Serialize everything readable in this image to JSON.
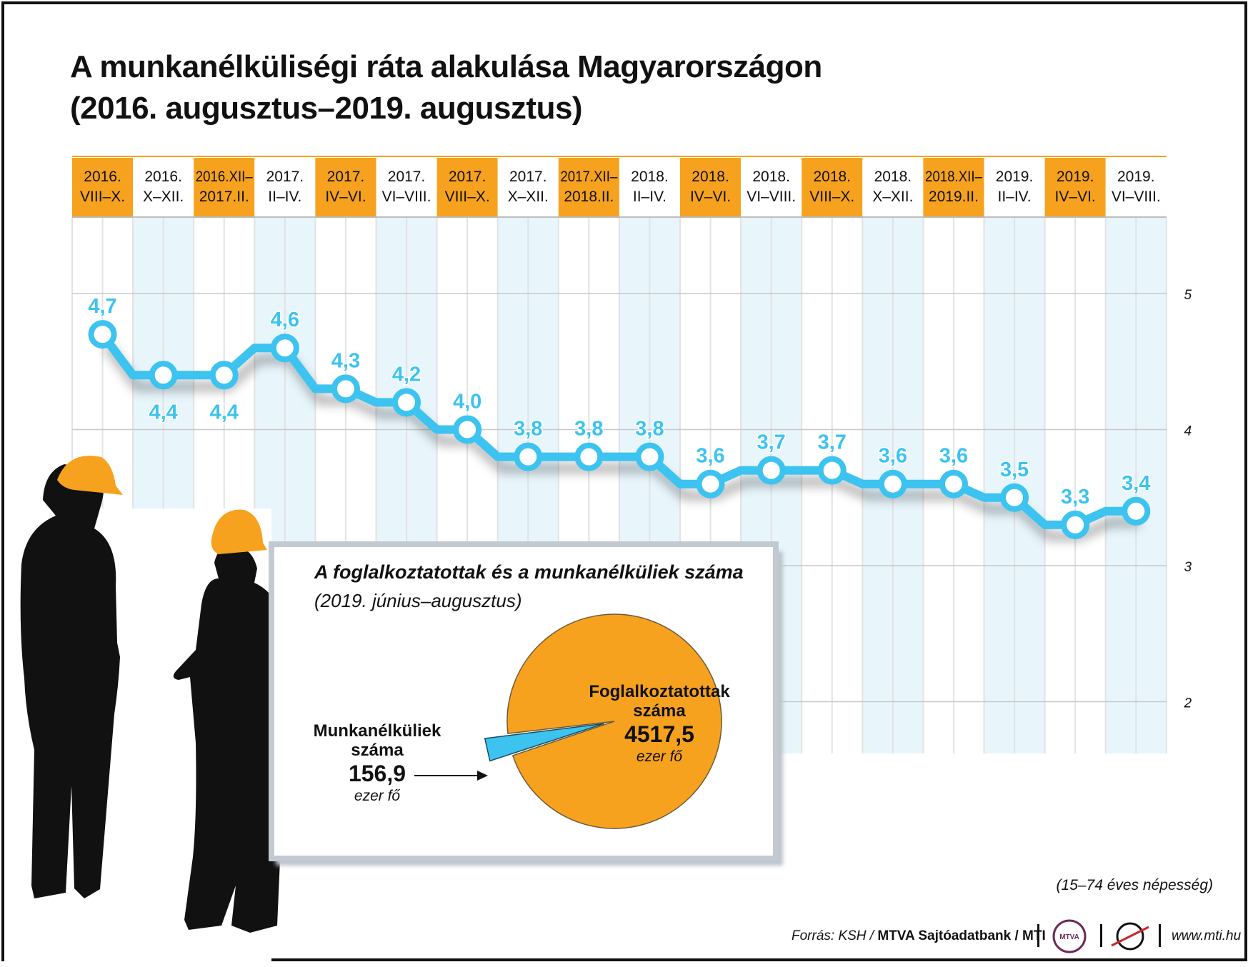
{
  "title_line1": "A munkanélküliségi ráta alakulása Magyarországon",
  "title_line2": "(2016. augusztus–2019. augusztus)",
  "colors": {
    "orange": "#f6a21e",
    "line": "#3cc3f0",
    "stripe": "#e8f6fc",
    "grid": "#c8c8c8"
  },
  "chart_data": [
    {
      "type": "line",
      "categories": [
        [
          "2016.",
          "VIII–X."
        ],
        [
          "2016.",
          "X–XII."
        ],
        [
          "2016.XII–",
          "2017.II."
        ],
        [
          "2017.",
          "II–IV."
        ],
        [
          "2017.",
          "IV–VI."
        ],
        [
          "2017.",
          "VI–VIII."
        ],
        [
          "2017.",
          "VIII–X."
        ],
        [
          "2017.",
          "X–XII."
        ],
        [
          "2017.XII–",
          "2018.II."
        ],
        [
          "2018.",
          "II–IV."
        ],
        [
          "2018.",
          "IV–VI."
        ],
        [
          "2018.",
          "VI–VIII."
        ],
        [
          "2018.",
          "VIII–X."
        ],
        [
          "2018.",
          "X–XII."
        ],
        [
          "2018.XII–",
          "2019.II."
        ],
        [
          "2019.",
          "II–IV."
        ],
        [
          "2019.",
          "IV–VI."
        ],
        [
          "2019.",
          "VI–VIII."
        ]
      ],
      "values": [
        4.7,
        4.4,
        4.4,
        4.6,
        4.3,
        4.2,
        4.0,
        3.8,
        3.8,
        3.8,
        3.6,
        3.7,
        3.7,
        3.6,
        3.6,
        3.5,
        3.3,
        3.4
      ],
      "value_labels": [
        "4,7",
        "4,4",
        "4,4",
        "4,6",
        "4,3",
        "4,2",
        "4,0",
        "3,8",
        "3,8",
        "3,8",
        "3,6",
        "3,7",
        "3,7",
        "3,6",
        "3,6",
        "3,5",
        "3,3",
        "3,4"
      ],
      "label_below": [
        false,
        true,
        true,
        false,
        false,
        false,
        false,
        false,
        false,
        false,
        false,
        false,
        false,
        false,
        false,
        false,
        false,
        false
      ],
      "highlighted": [
        true,
        false,
        true,
        false,
        true,
        false,
        true,
        false,
        true,
        false,
        true,
        false,
        true,
        false,
        true,
        false,
        true,
        false
      ],
      "y_ticks": [
        2,
        3,
        4,
        5
      ],
      "ylim": [
        1.6,
        5.4
      ],
      "note": "(15–74 éves népesség)"
    },
    {
      "type": "pie",
      "title": "A foglalkoztatottak és a munkanélküliek száma",
      "subtitle": "(2019. június–augusztus)",
      "slices": [
        {
          "name_line1": "Foglalkoztatottak",
          "name_line2": "száma",
          "value": 4517.5,
          "value_label": "4517,5",
          "unit": "ezer fő",
          "color": "#f6a21e"
        },
        {
          "name_line1": "Munkanélküliek",
          "name_line2": "száma",
          "value": 156.9,
          "value_label": "156,9",
          "unit": "ezer fő",
          "color": "#3cc3f0"
        }
      ]
    }
  ],
  "source": {
    "prefix": "Forrás: KSH / ",
    "bold": "MTVA Sajtóadatbank / MTI"
  },
  "logos": [
    "mtva-logo",
    "mti-logo"
  ],
  "logo_text": "MTVA",
  "website": "www.mti.hu"
}
